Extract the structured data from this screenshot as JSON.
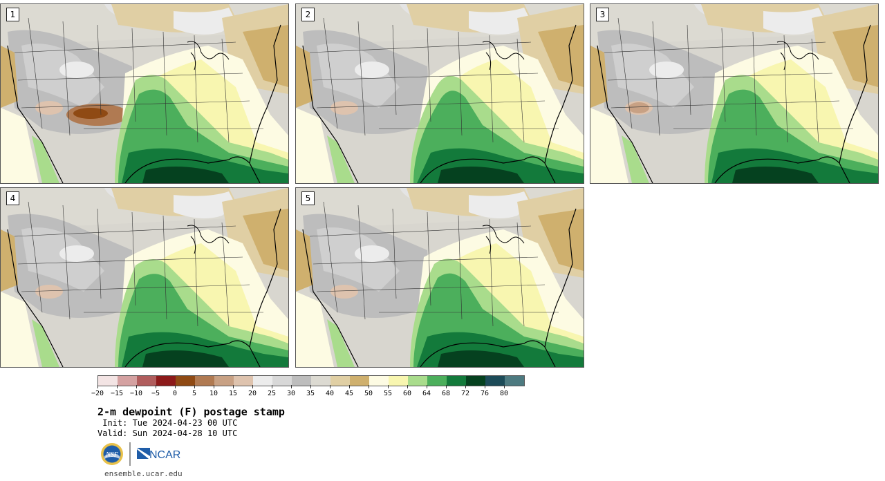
{
  "panels": [
    {
      "id": "p1",
      "label": "1",
      "variant": 0
    },
    {
      "id": "p2",
      "label": "2",
      "variant": 1
    },
    {
      "id": "p3",
      "label": "3",
      "variant": 2
    },
    {
      "id": "p4",
      "label": "4",
      "variant": 3
    },
    {
      "id": "p5",
      "label": "5",
      "variant": 4
    }
  ],
  "colorbar": {
    "colors": [
      "#f3e4e4",
      "#d4a1a1",
      "#b05d5d",
      "#8c1a1a",
      "#8f4a14",
      "#b07a52",
      "#c8a184",
      "#dec3ae",
      "#ececec",
      "#d8d8d8",
      "#bdbdbd",
      "#dcdad2",
      "#e0cfa4",
      "#cfb06e",
      "#fdfbe3",
      "#f8f6b0",
      "#a9dc8c",
      "#4caf5c",
      "#137a3b",
      "#05411f",
      "#1c4b58",
      "#4d7a80"
    ],
    "tick_labels": [
      "−20",
      "−15",
      "−10",
      "−5",
      "0",
      "5",
      "10",
      "15",
      "20",
      "25",
      "30",
      "35",
      "40",
      "45",
      "50",
      "55",
      "60",
      "64",
      "68",
      "72",
      "76",
      "80"
    ]
  },
  "legend": {
    "title": "2-m dewpoint (F) postage stamp",
    "init": " Init: Tue 2024-04-23 00 UTC",
    "valid": "Valid: Sun 2024-04-28 10 UTC"
  },
  "logos": {
    "nsf_text": "NSF",
    "ncar_text": "NCAR"
  },
  "footer": {
    "url": "ensemble.ucar.edu"
  }
}
